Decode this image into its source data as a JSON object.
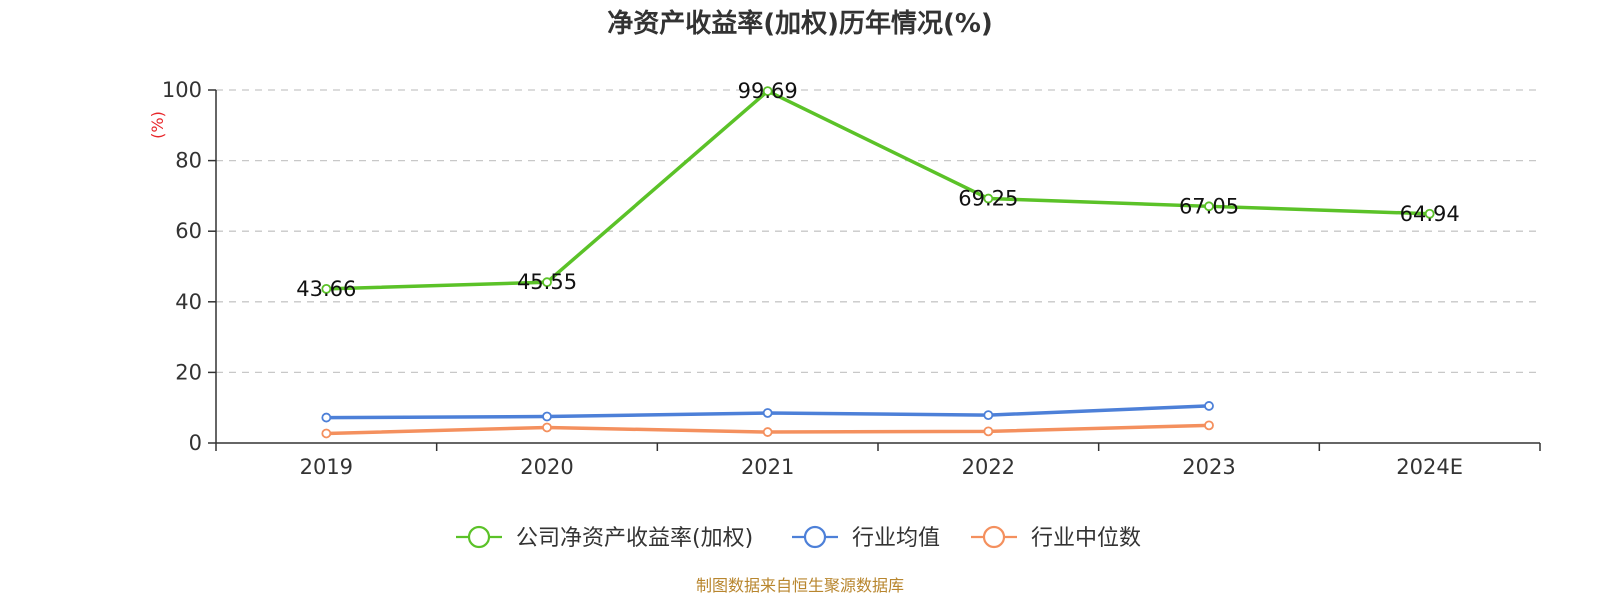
{
  "chart_data": {
    "type": "line",
    "title": "净资产收益率(加权)历年情况(%)",
    "ylabel": "(%)",
    "xlabel": "",
    "categories": [
      "2019",
      "2020",
      "2021",
      "2022",
      "2023",
      "2024E"
    ],
    "y_ticks": [
      "0",
      "20",
      "40",
      "60",
      "80",
      "100"
    ],
    "ylim": [
      0,
      100
    ],
    "grid": true,
    "legend_position": "bottom-center",
    "series": [
      {
        "name": "公司净资产收益率(加权)",
        "color": "#5bc228",
        "values": [
          43.66,
          45.55,
          99.69,
          69.25,
          67.05,
          64.94
        ],
        "labels": [
          "43.66",
          "45.55",
          "99.69",
          "69.25",
          "67.05",
          "64.94"
        ]
      },
      {
        "name": "行业均值",
        "color": "#4d80d8",
        "values": [
          7.2,
          7.5,
          8.5,
          7.9,
          10.5,
          null
        ],
        "labels": []
      },
      {
        "name": "行业中位数",
        "color": "#f4905e",
        "values": [
          2.7,
          4.4,
          3.1,
          3.3,
          5.0,
          null
        ],
        "labels": []
      }
    ],
    "source": "制图数据来自恒生聚源数据库"
  }
}
